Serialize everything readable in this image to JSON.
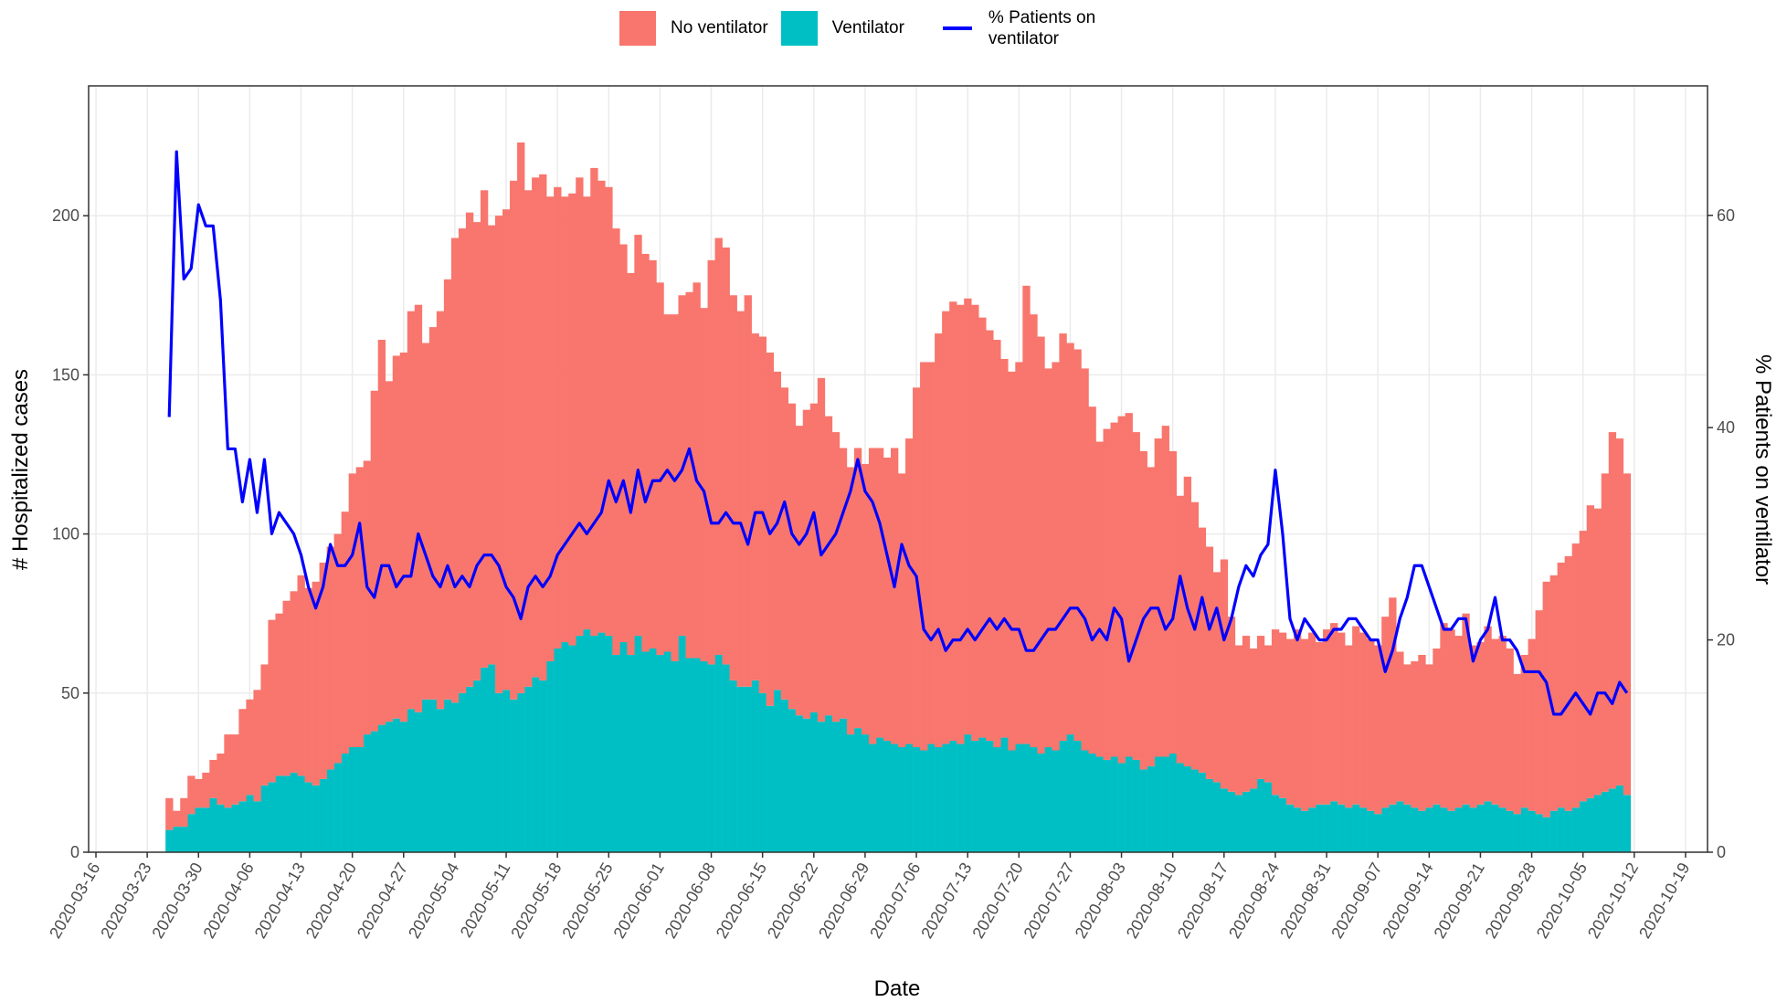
{
  "chart_data": {
    "type": "bar",
    "stacked": true,
    "xlabel": "Date",
    "ylabel": "# Hospitalized cases",
    "y2label": "% Patients on ventilator",
    "legend": "top",
    "grid": true,
    "x": [
      "2020-03-26",
      "2020-03-27",
      "2020-03-28",
      "2020-03-29",
      "2020-03-30",
      "2020-03-31",
      "2020-04-01",
      "2020-04-02",
      "2020-04-03",
      "2020-04-04",
      "2020-04-05",
      "2020-04-06",
      "2020-04-07",
      "2020-04-08",
      "2020-04-09",
      "2020-04-10",
      "2020-04-11",
      "2020-04-12",
      "2020-04-13",
      "2020-04-14",
      "2020-04-15",
      "2020-04-16",
      "2020-04-17",
      "2020-04-18",
      "2020-04-19",
      "2020-04-20",
      "2020-04-21",
      "2020-04-22",
      "2020-04-23",
      "2020-04-24",
      "2020-04-25",
      "2020-04-26",
      "2020-04-27",
      "2020-04-28",
      "2020-04-29",
      "2020-04-30",
      "2020-05-01",
      "2020-05-02",
      "2020-05-03",
      "2020-05-04",
      "2020-05-05",
      "2020-05-06",
      "2020-05-07",
      "2020-05-08",
      "2020-05-09",
      "2020-05-10",
      "2020-05-11",
      "2020-05-12",
      "2020-05-13",
      "2020-05-14",
      "2020-05-15",
      "2020-05-16",
      "2020-05-17",
      "2020-05-18",
      "2020-05-19",
      "2020-05-20",
      "2020-05-21",
      "2020-05-22",
      "2020-05-23",
      "2020-05-24",
      "2020-05-25",
      "2020-05-26",
      "2020-05-27",
      "2020-05-28",
      "2020-05-29",
      "2020-05-30",
      "2020-05-31",
      "2020-06-01",
      "2020-06-02",
      "2020-06-03",
      "2020-06-04",
      "2020-06-05",
      "2020-06-06",
      "2020-06-07",
      "2020-06-08",
      "2020-06-09",
      "2020-06-10",
      "2020-06-11",
      "2020-06-12",
      "2020-06-13",
      "2020-06-14",
      "2020-06-15",
      "2020-06-16",
      "2020-06-17",
      "2020-06-18",
      "2020-06-19",
      "2020-06-20",
      "2020-06-21",
      "2020-06-22",
      "2020-06-23",
      "2020-06-24",
      "2020-06-25",
      "2020-06-26",
      "2020-06-27",
      "2020-06-28",
      "2020-06-29",
      "2020-06-30",
      "2020-07-01",
      "2020-07-02",
      "2020-07-03",
      "2020-07-04",
      "2020-07-05",
      "2020-07-06",
      "2020-07-07",
      "2020-07-08",
      "2020-07-09",
      "2020-07-10",
      "2020-07-11",
      "2020-07-12",
      "2020-07-13",
      "2020-07-14",
      "2020-07-15",
      "2020-07-16",
      "2020-07-17",
      "2020-07-18",
      "2020-07-19",
      "2020-07-20",
      "2020-07-21",
      "2020-07-22",
      "2020-07-23",
      "2020-07-24",
      "2020-07-25",
      "2020-07-26",
      "2020-07-27",
      "2020-07-28",
      "2020-07-29",
      "2020-07-30",
      "2020-07-31",
      "2020-08-01",
      "2020-08-02",
      "2020-08-03",
      "2020-08-04",
      "2020-08-05",
      "2020-08-06",
      "2020-08-07",
      "2020-08-08",
      "2020-08-09",
      "2020-08-10",
      "2020-08-11",
      "2020-08-12",
      "2020-08-13",
      "2020-08-14",
      "2020-08-15",
      "2020-08-16",
      "2020-08-17",
      "2020-08-18",
      "2020-08-19",
      "2020-08-20",
      "2020-08-21",
      "2020-08-22",
      "2020-08-23",
      "2020-08-24",
      "2020-08-25",
      "2020-08-26",
      "2020-08-27",
      "2020-08-28",
      "2020-08-29",
      "2020-08-30",
      "2020-08-31",
      "2020-09-01",
      "2020-09-02",
      "2020-09-03",
      "2020-09-04",
      "2020-09-05",
      "2020-09-06",
      "2020-09-07",
      "2020-09-08",
      "2020-09-09",
      "2020-09-10",
      "2020-09-11",
      "2020-09-12",
      "2020-09-13",
      "2020-09-14",
      "2020-09-15",
      "2020-09-16",
      "2020-09-17",
      "2020-09-18",
      "2020-09-19",
      "2020-09-20",
      "2020-09-21",
      "2020-09-22",
      "2020-09-23",
      "2020-09-24",
      "2020-09-25",
      "2020-09-26",
      "2020-09-27",
      "2020-09-28",
      "2020-09-29",
      "2020-09-30",
      "2020-10-01",
      "2020-10-02",
      "2020-10-03",
      "2020-10-04",
      "2020-10-05",
      "2020-10-06",
      "2020-10-07",
      "2020-10-08",
      "2020-10-09",
      "2020-10-10",
      "2020-10-11"
    ],
    "series": [
      {
        "name": "No ventilator",
        "color": "#F8766D",
        "values": [
          10,
          5,
          9,
          12,
          9,
          11,
          12,
          16,
          23,
          22,
          29,
          30,
          35,
          38,
          51,
          51,
          55,
          57,
          63,
          61,
          64,
          68,
          70,
          72,
          76,
          86,
          88,
          86,
          107,
          121,
          107,
          114,
          116,
          125,
          128,
          112,
          117,
          125,
          132,
          146,
          146,
          149,
          144,
          150,
          138,
          150,
          151,
          163,
          173,
          156,
          157,
          159,
          146,
          145,
          140,
          142,
          144,
          136,
          147,
          142,
          141,
          134,
          125,
          120,
          126,
          125,
          122,
          117,
          106,
          109,
          107,
          115,
          118,
          111,
          127,
          131,
          131,
          121,
          118,
          123,
          109,
          112,
          111,
          100,
          98,
          96,
          91,
          97,
          97,
          108,
          94,
          91,
          85,
          84,
          88,
          85,
          93,
          91,
          89,
          93,
          86,
          96,
          113,
          122,
          120,
          130,
          136,
          138,
          138,
          137,
          137,
          132,
          129,
          128,
          119,
          119,
          120,
          144,
          136,
          131,
          119,
          122,
          128,
          123,
          123,
          120,
          109,
          99,
          104,
          105,
          109,
          108,
          103,
          100,
          94,
          100,
          104,
          95,
          84,
          91,
          84,
          77,
          73,
          66,
          72,
          55,
          47,
          49,
          44,
          45,
          43,
          52,
          52,
          52,
          56,
          54,
          55,
          51,
          55,
          56,
          54,
          51,
          56,
          55,
          54,
          53,
          60,
          65,
          47,
          44,
          46,
          49,
          45,
          49,
          58,
          57,
          54,
          60,
          51,
          51,
          55,
          52,
          54,
          51,
          44,
          48,
          54,
          64,
          74,
          74,
          77,
          80,
          83,
          85,
          92,
          90,
          100,
          112,
          109,
          101
        ]
      },
      {
        "name": "Ventilator",
        "color": "#00BFC4",
        "values": [
          7,
          8,
          8,
          12,
          14,
          14,
          17,
          15,
          14,
          15,
          16,
          18,
          16,
          21,
          22,
          24,
          24,
          25,
          24,
          22,
          21,
          23,
          26,
          28,
          31,
          33,
          33,
          37,
          38,
          40,
          41,
          42,
          41,
          45,
          44,
          48,
          48,
          45,
          48,
          47,
          50,
          52,
          54,
          58,
          59,
          50,
          51,
          48,
          50,
          52,
          55,
          54,
          60,
          64,
          66,
          65,
          68,
          70,
          68,
          69,
          68,
          62,
          66,
          62,
          68,
          63,
          64,
          62,
          63,
          60,
          68,
          61,
          61,
          60,
          59,
          62,
          59,
          54,
          52,
          52,
          54,
          50,
          46,
          51,
          48,
          45,
          43,
          42,
          44,
          41,
          43,
          41,
          42,
          37,
          39,
          37,
          34,
          36,
          35,
          34,
          33,
          34,
          33,
          32,
          34,
          33,
          34,
          35,
          34,
          37,
          35,
          36,
          35,
          33,
          36,
          32,
          34,
          34,
          33,
          31,
          33,
          32,
          35,
          37,
          35,
          32,
          31,
          30,
          29,
          30,
          28,
          30,
          29,
          26,
          27,
          30,
          30,
          31,
          28,
          27,
          26,
          25,
          23,
          22,
          20,
          19,
          18,
          19,
          20,
          23,
          22,
          18,
          17,
          15,
          14,
          13,
          14,
          15,
          15,
          16,
          15,
          14,
          15,
          14,
          13,
          12,
          14,
          15,
          16,
          15,
          14,
          13,
          14,
          15,
          14,
          13,
          14,
          15,
          14,
          15,
          16,
          15,
          14,
          13,
          12,
          14,
          13,
          12,
          11,
          13,
          14,
          13,
          14,
          16,
          17,
          18,
          19,
          20,
          21,
          18
        ]
      },
      {
        "name": "% Patients on ventilator",
        "type": "line",
        "axis": "y2",
        "color": "#0000FF",
        "values": [
          41,
          66,
          54,
          55,
          61,
          59,
          59,
          52,
          38,
          38,
          33,
          37,
          32,
          37,
          30,
          32,
          31,
          30,
          28,
          25,
          23,
          25,
          29,
          27,
          27,
          28,
          31,
          25,
          24,
          27,
          27,
          25,
          26,
          26,
          30,
          28,
          26,
          25,
          27,
          25,
          26,
          25,
          27,
          28,
          28,
          27,
          25,
          24,
          22,
          25,
          26,
          25,
          26,
          28,
          29,
          30,
          31,
          30,
          31,
          32,
          35,
          33,
          35,
          32,
          36,
          33,
          35,
          35,
          36,
          35,
          36,
          38,
          35,
          34,
          31,
          31,
          32,
          31,
          31,
          29,
          32,
          32,
          30,
          31,
          33,
          30,
          29,
          30,
          32,
          28,
          29,
          30,
          32,
          34,
          37,
          34,
          33,
          31,
          28,
          25,
          29,
          27,
          26,
          21,
          20,
          21,
          19,
          20,
          20,
          21,
          20,
          21,
          22,
          21,
          22,
          21,
          21,
          19,
          19,
          20,
          21,
          21,
          22,
          23,
          23,
          22,
          20,
          21,
          20,
          23,
          22,
          18,
          20,
          22,
          23,
          23,
          21,
          22,
          26,
          23,
          21,
          24,
          21,
          23,
          20,
          22,
          25,
          27,
          26,
          28,
          29,
          36,
          30,
          22,
          20,
          22,
          21,
          20,
          20,
          21,
          21,
          22,
          22,
          21,
          20,
          20,
          17,
          19,
          22,
          24,
          27,
          27,
          25,
          23,
          21,
          21,
          22,
          22,
          18,
          20,
          21,
          24,
          20,
          20,
          19,
          17,
          17,
          17,
          16,
          13,
          13,
          14,
          15,
          14,
          13,
          15,
          15,
          14,
          16,
          15
        ]
      }
    ],
    "xlim": [
      "2020-03-15",
      "2020-10-22"
    ],
    "xticks": [
      "2020-03-16",
      "2020-03-23",
      "2020-03-30",
      "2020-04-06",
      "2020-04-13",
      "2020-04-20",
      "2020-04-27",
      "2020-05-04",
      "2020-05-11",
      "2020-05-18",
      "2020-05-25",
      "2020-06-01",
      "2020-06-08",
      "2020-06-15",
      "2020-06-22",
      "2020-06-29",
      "2020-07-06",
      "2020-07-13",
      "2020-07-20",
      "2020-07-27",
      "2020-08-03",
      "2020-08-10",
      "2020-08-17",
      "2020-08-24",
      "2020-08-31",
      "2020-09-07",
      "2020-09-14",
      "2020-09-21",
      "2020-09-28",
      "2020-10-05",
      "2020-10-12",
      "2020-10-19"
    ],
    "ylim": [
      0,
      240.8
    ],
    "yticks": [
      0,
      50,
      100,
      150,
      200
    ],
    "y2lim": [
      0,
      72.2
    ],
    "y2ticks": [
      0,
      20,
      40,
      60
    ]
  }
}
